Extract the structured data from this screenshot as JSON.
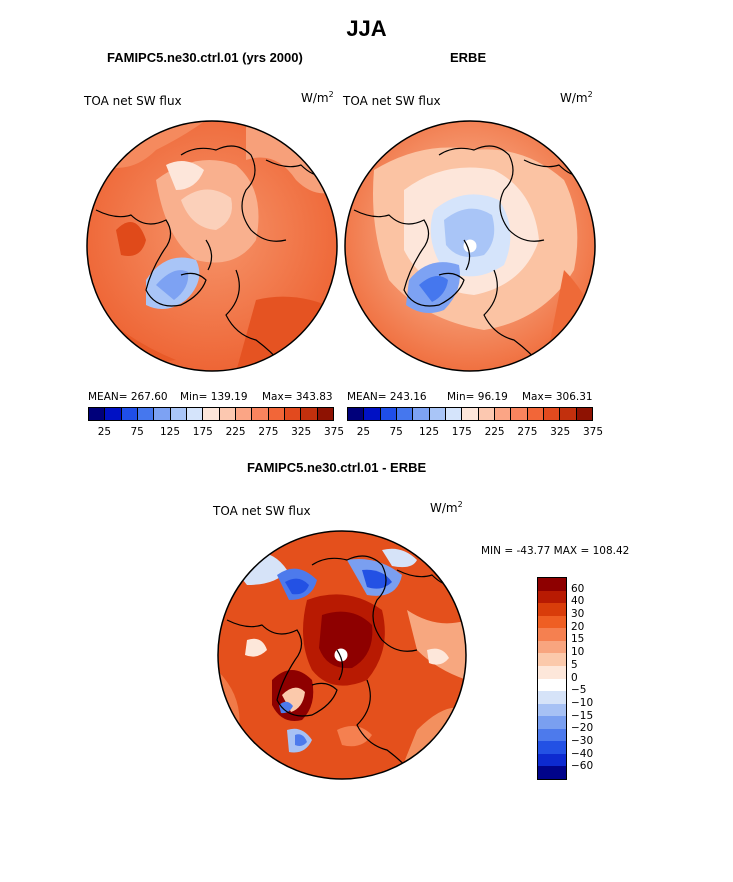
{
  "title": "JJA",
  "panels": {
    "model": {
      "title": "FAMIPC5.ne30.ctrl.01 (yrs 2000)",
      "variable": "TOA net SW flux",
      "units_base": "W/m",
      "units_exp": "2",
      "mean_text": "MEAN= 267.60",
      "min_text": "Min= 139.19",
      "max_text": "Max= 343.83"
    },
    "obs": {
      "title": "ERBE",
      "variable": "TOA net SW flux",
      "units_base": "W/m",
      "units_exp": "2",
      "mean_text": "MEAN= 243.16",
      "min_text": "Min= 96.19",
      "max_text": "Max= 306.31"
    },
    "diff": {
      "title": "FAMIPC5.ne30.ctrl.01 - ERBE",
      "variable": "TOA net SW flux",
      "units_base": "W/m",
      "units_exp": "2",
      "minmax_text": "MIN = -43.77 MAX = 108.42"
    }
  },
  "colorbar_top": {
    "colors": [
      "#00007a",
      "#0011c4",
      "#1f4ee8",
      "#4577ee",
      "#7da2f3",
      "#a9c5f7",
      "#d5e4fb",
      "#fde6da",
      "#fcc8b0",
      "#fba585",
      "#f9845e",
      "#f26638",
      "#e24a1e",
      "#c2300d",
      "#8e1202"
    ],
    "labels": [
      "25",
      "75",
      "125",
      "175",
      "225",
      "275",
      "325",
      "375"
    ]
  },
  "colorbar_diff": {
    "colors": [
      "#8e0000",
      "#b81a02",
      "#d93d0a",
      "#ef5f23",
      "#f58050",
      "#f8a57f",
      "#fbc9ab",
      "#fde7da",
      "#ffffff",
      "#d6e3f8",
      "#a7c1f4",
      "#7a9ff0",
      "#4d7aec",
      "#2351e4",
      "#0d2ad0",
      "#01048a"
    ],
    "labels": [
      "60",
      "40",
      "30",
      "20",
      "15",
      "10",
      "5",
      "0",
      "−5",
      "−10",
      "−15",
      "−20",
      "−30",
      "−40",
      "−60"
    ]
  }
}
